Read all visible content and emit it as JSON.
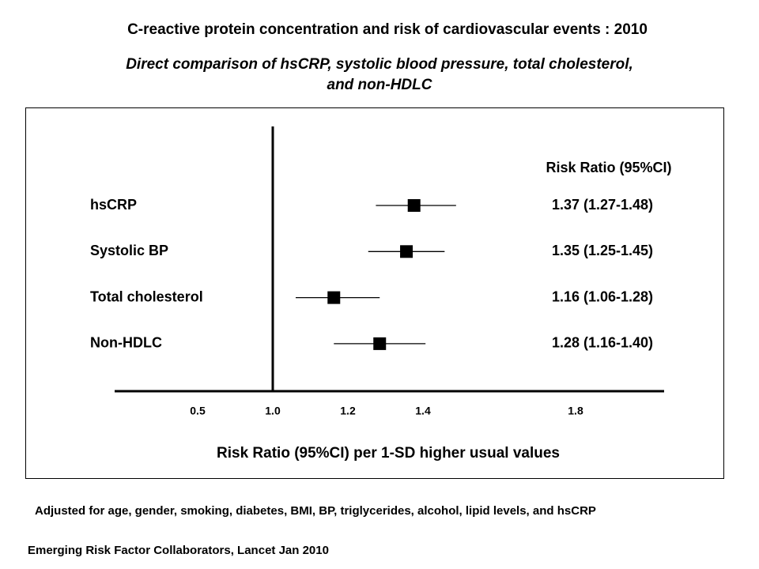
{
  "chart_data": {
    "type": "forest",
    "title": "C-reactive protein concentration and risk of cardiovascular events : 2010",
    "subtitle_lines": [
      "Direct comparison of hsCRP, systolic blood pressure, total cholesterol,",
      "and non-HDLC"
    ],
    "column_header": "Risk Ratio (95%CI)",
    "xlabel": "Risk Ratio (95%CI) per 1-SD higher usual values",
    "x_ticks": [
      0.5,
      1.0,
      1.2,
      1.4,
      1.8
    ],
    "x_tick_labels": [
      "0.5",
      "1.0",
      "1.2",
      "1.4",
      "1.8"
    ],
    "reference_line": 1.0,
    "rows": [
      {
        "label": "hsCRP",
        "estimate": 1.37,
        "lower": 1.27,
        "upper": 1.48,
        "ci_text": "1.37 (1.27-1.48)"
      },
      {
        "label": "Systolic BP",
        "estimate": 1.35,
        "lower": 1.25,
        "upper": 1.45,
        "ci_text": "1.35 (1.25-1.45)"
      },
      {
        "label": "Total cholesterol",
        "estimate": 1.16,
        "lower": 1.06,
        "upper": 1.28,
        "ci_text": "1.16 (1.06-1.28)"
      },
      {
        "label": "Non-HDLC",
        "estimate": 1.28,
        "lower": 1.16,
        "upper": 1.4,
        "ci_text": "1.28 (1.16-1.40)"
      }
    ]
  },
  "footnote": "Adjusted for age, gender, smoking, diabetes, BMI, BP, triglycerides, alcohol, lipid levels, and hsCRP",
  "source": "Emerging Risk Factor Collaborators, Lancet Jan 2010"
}
